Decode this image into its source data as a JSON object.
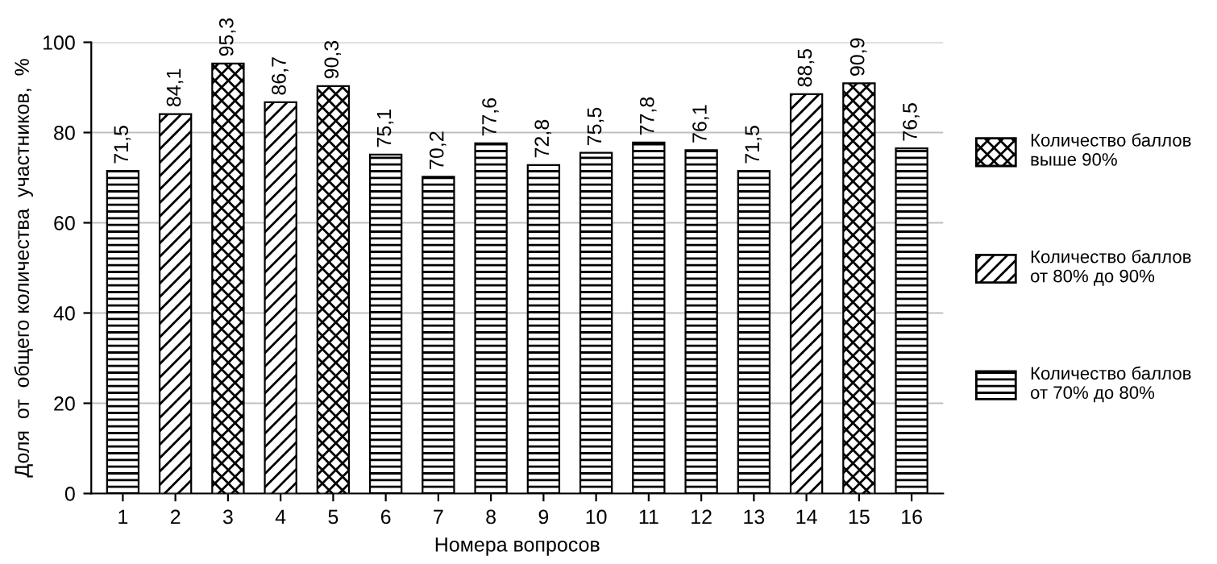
{
  "chart_data": {
    "type": "bar",
    "xlabel": "Номера вопросов",
    "ylabel": "Доля  от  общего количества  участников,  %",
    "categories": [
      "1",
      "2",
      "3",
      "4",
      "5",
      "6",
      "7",
      "8",
      "9",
      "10",
      "11",
      "12",
      "13",
      "14",
      "15",
      "16"
    ],
    "series": [
      {
        "name": "Количество баллов выше 90%",
        "color": "#000000",
        "values": [
          null,
          null,
          95.3,
          null,
          90.3,
          null,
          null,
          null,
          null,
          null,
          null,
          null,
          null,
          null,
          90.9,
          null
        ],
        "value_labels": [
          null,
          null,
          "95,3",
          null,
          "90,3",
          null,
          null,
          null,
          null,
          null,
          null,
          null,
          null,
          null,
          "90,9",
          null
        ]
      },
      {
        "name": "Количество баллов от 80% до 90%",
        "color": "#000000",
        "values": [
          null,
          84.1,
          null,
          86.7,
          null,
          null,
          null,
          null,
          null,
          null,
          null,
          null,
          null,
          88.5,
          null,
          null
        ],
        "value_labels": [
          null,
          "84,1",
          null,
          "86,7",
          null,
          null,
          null,
          null,
          null,
          null,
          null,
          null,
          null,
          "88,5",
          null,
          null
        ]
      },
      {
        "name": "Количество баллов от 70% до 80%",
        "color": "#000000",
        "values": [
          71.5,
          null,
          null,
          null,
          null,
          75.1,
          70.2,
          77.6,
          72.8,
          75.5,
          77.8,
          76.1,
          71.5,
          null,
          null,
          76.5
        ],
        "value_labels": [
          "71,5",
          null,
          null,
          null,
          null,
          "75,1",
          "70,2",
          "77,6",
          "72,8",
          "75,5",
          "77,8",
          "76,1",
          "71,5",
          null,
          null,
          "76,5"
        ]
      }
    ],
    "ylim": [
      0,
      100
    ],
    "yticks": [
      0,
      20,
      40,
      60,
      80,
      100
    ],
    "grid": "y",
    "legend": "right"
  }
}
